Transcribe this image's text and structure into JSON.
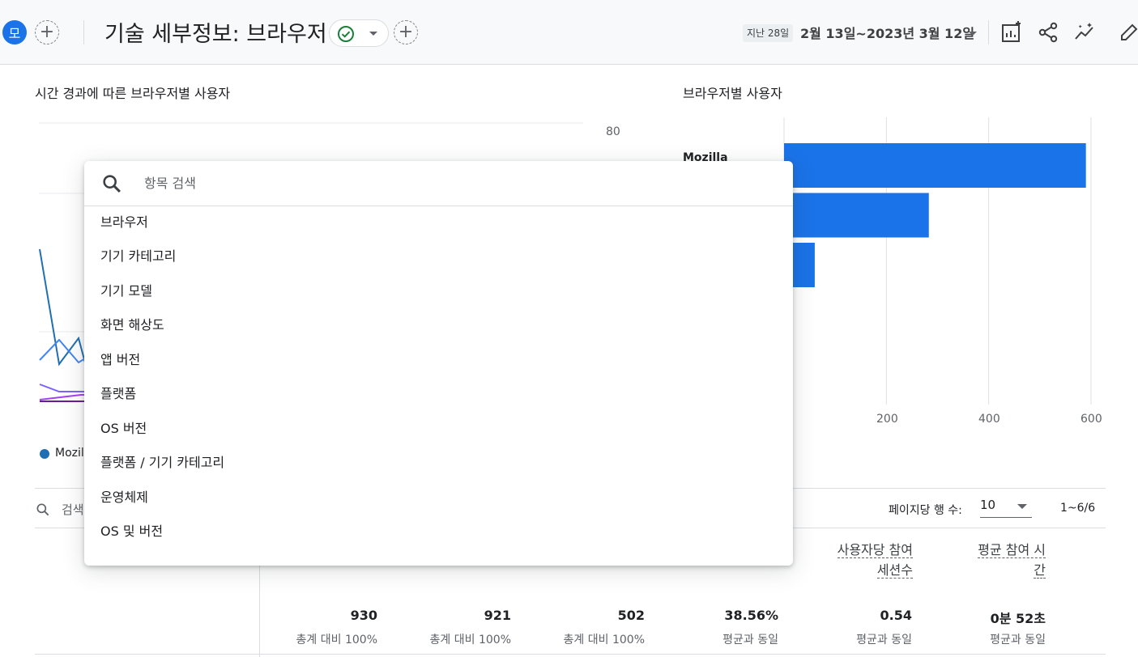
{
  "header": {
    "avatar_text": "모",
    "title": "기술 세부정보: 브라우저",
    "range_tag": "지난 28일",
    "date_range": "2월 13일~2023년 3월 12일",
    "add_symbol": "+"
  },
  "line_card": {
    "title": "시간 경과에 따른 브라우저별 사용자",
    "y_tick_top": "80",
    "legend_label": "Mozil",
    "legend_color": "#1f6fb2"
  },
  "bar_card": {
    "title": "브라우저별 사용자",
    "first_label": "Mozilla",
    "x_ticks": [
      "200",
      "400",
      "600"
    ],
    "bar_color": "#1a73e8"
  },
  "chart_data": {
    "type": "bar",
    "orientation": "horizontal",
    "categories": [
      "Mozilla",
      "",
      ""
    ],
    "values": [
      590,
      283,
      60
    ],
    "title": "브라우저별 사용자",
    "xlim": [
      0,
      610
    ]
  },
  "table": {
    "search_placeholder": "검색",
    "rows_per_page_label": "페이지당 행 수:",
    "rows_per_page_value": "10",
    "pagination": "1~6/6",
    "columns": [
      {
        "label_line1": "사용자당 참여",
        "label_line2": "세션수"
      },
      {
        "label_line1": "평균 참여 시",
        "label_line2": "간"
      }
    ],
    "totals": [
      {
        "value": "930",
        "sub": "총계 대비 100%"
      },
      {
        "value": "921",
        "sub": "총계 대비 100%"
      },
      {
        "value": "502",
        "sub": "총계 대비 100%"
      },
      {
        "value": "38.56%",
        "sub": "평균과 동일"
      },
      {
        "value": "0.54",
        "sub": "평균과 동일"
      },
      {
        "value": "0분 52초",
        "sub": "평균과 동일"
      }
    ]
  },
  "dropdown": {
    "search_placeholder": "항목 검색",
    "items": [
      "브라우저",
      "기기 카테고리",
      "기기 모델",
      "화면 해상도",
      "앱 버전",
      "플랫폼",
      "OS 버전",
      "플랫폼 / 기기 카테고리",
      "운영체제",
      "OS 및 버전"
    ]
  }
}
